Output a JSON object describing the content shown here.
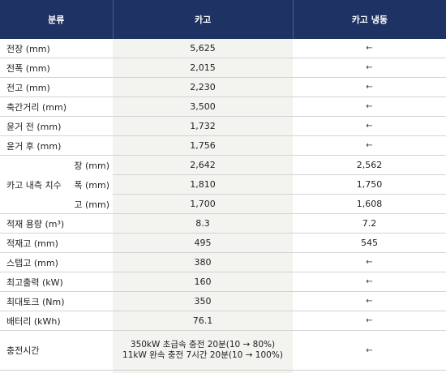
{
  "header": {
    "col1": "분류",
    "col2": "카고",
    "col3": "카고 냉동"
  },
  "rows": [
    {
      "label": "전장 (mm)",
      "cargo": "5,625",
      "frozen": "←"
    },
    {
      "label": "전폭 (mm)",
      "cargo": "2,015",
      "frozen": "←"
    },
    {
      "label": "전고 (mm)",
      "cargo": "2,230",
      "frozen": "←"
    },
    {
      "label": "축간거리 (mm)",
      "cargo": "3,500",
      "frozen": "←"
    },
    {
      "label": "윤거 전 (mm)",
      "cargo": "1,732",
      "frozen": "←"
    },
    {
      "label": "윤거 후 (mm)",
      "cargo": "1,756",
      "frozen": "←"
    }
  ],
  "inner": {
    "label": "카고 내측 치수",
    "rows": [
      {
        "sub": "장 (mm)",
        "cargo": "2,642",
        "frozen": "2,562"
      },
      {
        "sub": "폭 (mm)",
        "cargo": "1,810",
        "frozen": "1,750"
      },
      {
        "sub": "고 (mm)",
        "cargo": "1,700",
        "frozen": "1,608"
      }
    ]
  },
  "rows2": [
    {
      "label": "적재 용량 (m³)",
      "cargo": "8.3",
      "frozen": "7.2"
    },
    {
      "label": "적재고 (mm)",
      "cargo": "495",
      "frozen": "545"
    },
    {
      "label": "스텝고 (mm)",
      "cargo": "380",
      "frozen": "←"
    },
    {
      "label": "최고출력 (kW)",
      "cargo": "160",
      "frozen": "←"
    },
    {
      "label": "최대토크 (Nm)",
      "cargo": "350",
      "frozen": "←"
    },
    {
      "label": "배터리 (kWh)",
      "cargo": "76.1",
      "frozen": "←"
    }
  ],
  "charging": {
    "label": "충전시간",
    "line1": "350kW 초급속 충전 20분(10 → 80%)",
    "line2": "11kW 완속 충전 7시간 20분(10 → 100%)",
    "frozen": "←"
  }
}
